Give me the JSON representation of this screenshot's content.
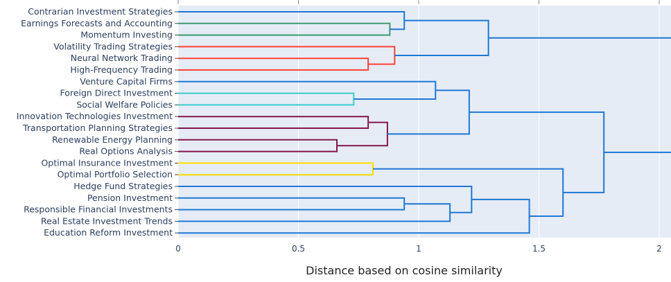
{
  "chart_data": {
    "type": "dendrogram",
    "orientation": "left",
    "xlabel": "Distance based on cosine similarity",
    "x_ticks": [
      0,
      0.5,
      1,
      1.5,
      2
    ],
    "x_tick_labels": [
      "0",
      "0.5",
      "1",
      "1.5",
      "2"
    ],
    "xlim": [
      0,
      2.02
    ],
    "leaves": [
      "Contrarian Investment Strategies",
      "Earnings Forecasts and Accounting",
      "Momentum Investing",
      "Volatility Trading Strategies",
      "Neural Network Trading",
      "High-Frequency Trading",
      "Venture Capital Firms",
      "Foreign Direct Investment",
      "Social Welfare Policies",
      "Innovation Technologies Investment",
      "Transportation Planning Strategies",
      "Renewable Energy Planning",
      "Real Options Analysis",
      "Optimal Insurance Investment",
      "Optimal Portfolio Selection",
      "Hedge Fund Strategies",
      "Pension Investment",
      "Responsible Financial Investments",
      "Real Estate Investment Trends",
      "Education Reform Investment"
    ],
    "colors": {
      "default": "#1f77d4",
      "green": "#3d9970",
      "red": "#ff4136",
      "cyan": "#39cccc",
      "maroon": "#85144b",
      "yellow": "#ffdc00",
      "plot_bg": "#e5ecf6"
    },
    "merges": [
      {
        "children": [
          1,
          2
        ],
        "distance": 0.88,
        "color": "green"
      },
      {
        "children": [
          0,
          "m0"
        ],
        "distance": 0.94,
        "color": "default"
      },
      {
        "children": [
          4,
          5
        ],
        "distance": 0.79,
        "color": "red"
      },
      {
        "children": [
          3,
          "m2"
        ],
        "distance": 0.9,
        "color": "red"
      },
      {
        "children": [
          "m1",
          "m3"
        ],
        "distance": 1.29,
        "color": "default"
      },
      {
        "children": [
          7,
          8
        ],
        "distance": 0.73,
        "color": "cyan"
      },
      {
        "children": [
          6,
          "m5"
        ],
        "distance": 1.07,
        "color": "default"
      },
      {
        "children": [
          9,
          10
        ],
        "distance": 0.79,
        "color": "maroon"
      },
      {
        "children": [
          11,
          12
        ],
        "distance": 0.66,
        "color": "maroon"
      },
      {
        "children": [
          "m7",
          "m8"
        ],
        "distance": 0.87,
        "color": "maroon"
      },
      {
        "children": [
          "m6",
          "m9"
        ],
        "distance": 1.21,
        "color": "default"
      },
      {
        "children": [
          13,
          14
        ],
        "distance": 0.81,
        "color": "yellow"
      },
      {
        "children": [
          16,
          17
        ],
        "distance": 0.94,
        "color": "default"
      },
      {
        "children": [
          "m12",
          18
        ],
        "distance": 1.13,
        "color": "default"
      },
      {
        "children": [
          15,
          "m13"
        ],
        "distance": 1.22,
        "color": "default"
      },
      {
        "children": [
          "m14",
          19
        ],
        "distance": 1.46,
        "color": "default"
      },
      {
        "children": [
          "m11",
          "m15"
        ],
        "distance": 1.6,
        "color": "default"
      },
      {
        "children": [
          "m10",
          "m16"
        ],
        "distance": 1.77,
        "color": "default"
      },
      {
        "children": [
          "m4",
          "m17"
        ],
        "distance": 2.1,
        "color": "default"
      }
    ]
  }
}
